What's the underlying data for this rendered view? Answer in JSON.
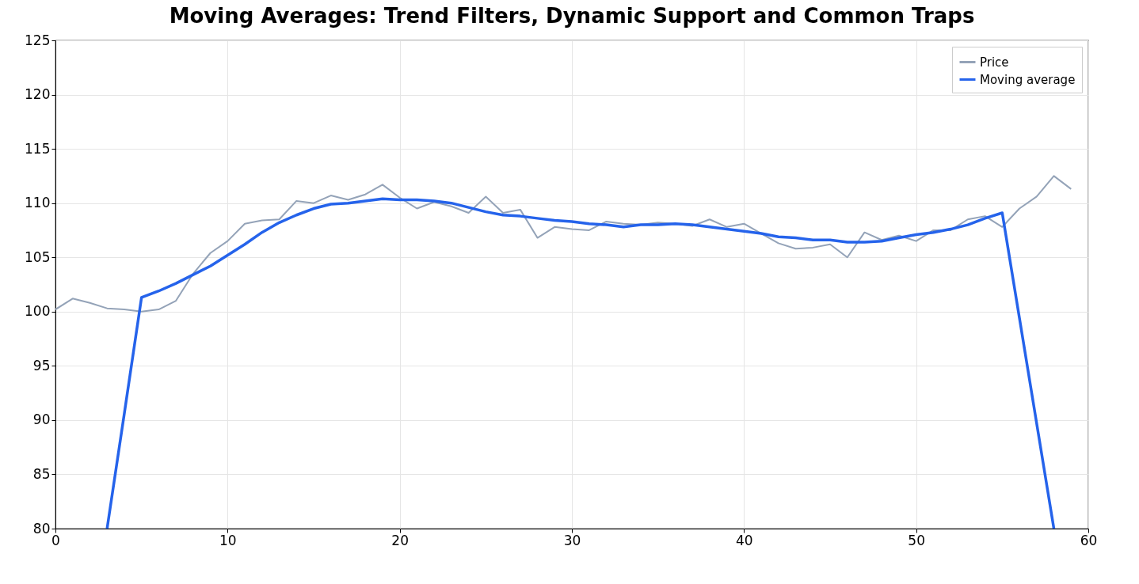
{
  "chart_data": {
    "type": "line",
    "title": "Moving Averages: Trend Filters, Dynamic Support and Common Traps",
    "x": [
      0,
      1,
      2,
      3,
      4,
      5,
      6,
      7,
      8,
      9,
      10,
      11,
      12,
      13,
      14,
      15,
      16,
      17,
      18,
      19,
      20,
      21,
      22,
      23,
      24,
      25,
      26,
      27,
      28,
      29,
      30,
      31,
      32,
      33,
      34,
      35,
      36,
      37,
      38,
      39,
      40,
      41,
      42,
      43,
      44,
      45,
      46,
      47,
      48,
      49,
      50,
      51,
      52,
      53,
      54,
      55,
      56,
      57,
      58,
      59
    ],
    "series": [
      {
        "name": "Price",
        "color": "#94a3b8",
        "values": [
          100.2,
          101.2,
          100.8,
          100.3,
          100.2,
          100.0,
          100.2,
          101.0,
          103.5,
          105.4,
          106.5,
          108.1,
          108.4,
          108.5,
          110.2,
          110.0,
          110.7,
          110.3,
          110.8,
          111.7,
          110.5,
          109.5,
          110.1,
          109.7,
          109.1,
          110.6,
          109.1,
          109.4,
          106.8,
          107.8,
          107.6,
          107.5,
          108.3,
          108.1,
          108.0,
          108.2,
          108.1,
          107.9,
          108.5,
          107.8,
          108.1,
          107.2,
          106.3,
          105.8,
          105.9,
          106.2,
          105.0,
          107.3,
          106.6,
          107.0,
          106.5,
          107.5,
          107.5,
          108.5,
          108.8,
          107.8,
          109.5,
          110.6,
          112.5,
          111.3
        ]
      },
      {
        "name": "Moving average",
        "color": "#2563eb",
        "x": [
          3,
          4,
          5,
          6,
          7,
          8,
          9,
          10,
          11,
          12,
          13,
          14,
          15,
          16,
          17,
          18,
          19,
          20,
          21,
          22,
          23,
          24,
          25,
          26,
          27,
          28,
          29,
          30,
          31,
          32,
          33,
          34,
          35,
          36,
          37,
          38,
          39,
          40,
          41,
          42,
          43,
          44,
          45,
          46,
          47,
          48,
          49,
          50,
          51,
          52,
          53,
          54,
          55,
          56,
          57,
          58
        ],
        "values": [
          80.0,
          90.6,
          101.3,
          101.9,
          102.6,
          103.4,
          104.2,
          105.2,
          106.2,
          107.3,
          108.2,
          108.9,
          109.5,
          109.9,
          110.0,
          110.2,
          110.4,
          110.3,
          110.3,
          110.2,
          110.0,
          109.6,
          109.2,
          108.9,
          108.8,
          108.6,
          108.4,
          108.3,
          108.1,
          108.0,
          107.8,
          108.0,
          108.0,
          108.1,
          108.0,
          107.8,
          107.6,
          107.4,
          107.2,
          106.9,
          106.8,
          106.6,
          106.6,
          106.4,
          106.4,
          106.5,
          106.8,
          107.1,
          107.3,
          107.6,
          108.0,
          108.6,
          109.1,
          99.4,
          89.7,
          80.0
        ]
      }
    ],
    "xlim": [
      0,
      60
    ],
    "xticks": [
      0,
      10,
      20,
      30,
      40,
      50,
      60
    ],
    "ylim": [
      80,
      125
    ],
    "yticks": [
      80,
      85,
      90,
      95,
      100,
      105,
      110,
      115,
      120,
      125
    ],
    "grid": true,
    "legend": "top right"
  }
}
